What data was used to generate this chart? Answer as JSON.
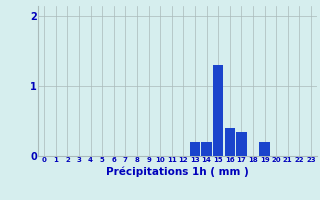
{
  "hours": [
    0,
    1,
    2,
    3,
    4,
    5,
    6,
    7,
    8,
    9,
    10,
    11,
    12,
    13,
    14,
    15,
    16,
    17,
    18,
    19,
    20,
    21,
    22,
    23
  ],
  "values": [
    0,
    0,
    0,
    0,
    0,
    0,
    0,
    0,
    0,
    0,
    0,
    0,
    0,
    0.2,
    0.2,
    1.3,
    0.4,
    0.35,
    0,
    0.2,
    0,
    0,
    0,
    0
  ],
  "bar_color": "#1a44cc",
  "background_color": "#d6eeee",
  "grid_color": "#aababa",
  "xlabel": "Précipitations 1h ( mm )",
  "xlabel_color": "#0000bb",
  "tick_color": "#0000bb",
  "ylim": [
    0,
    2.15
  ],
  "yticks": [
    0,
    1,
    2
  ],
  "xlim": [
    -0.5,
    23.5
  ]
}
